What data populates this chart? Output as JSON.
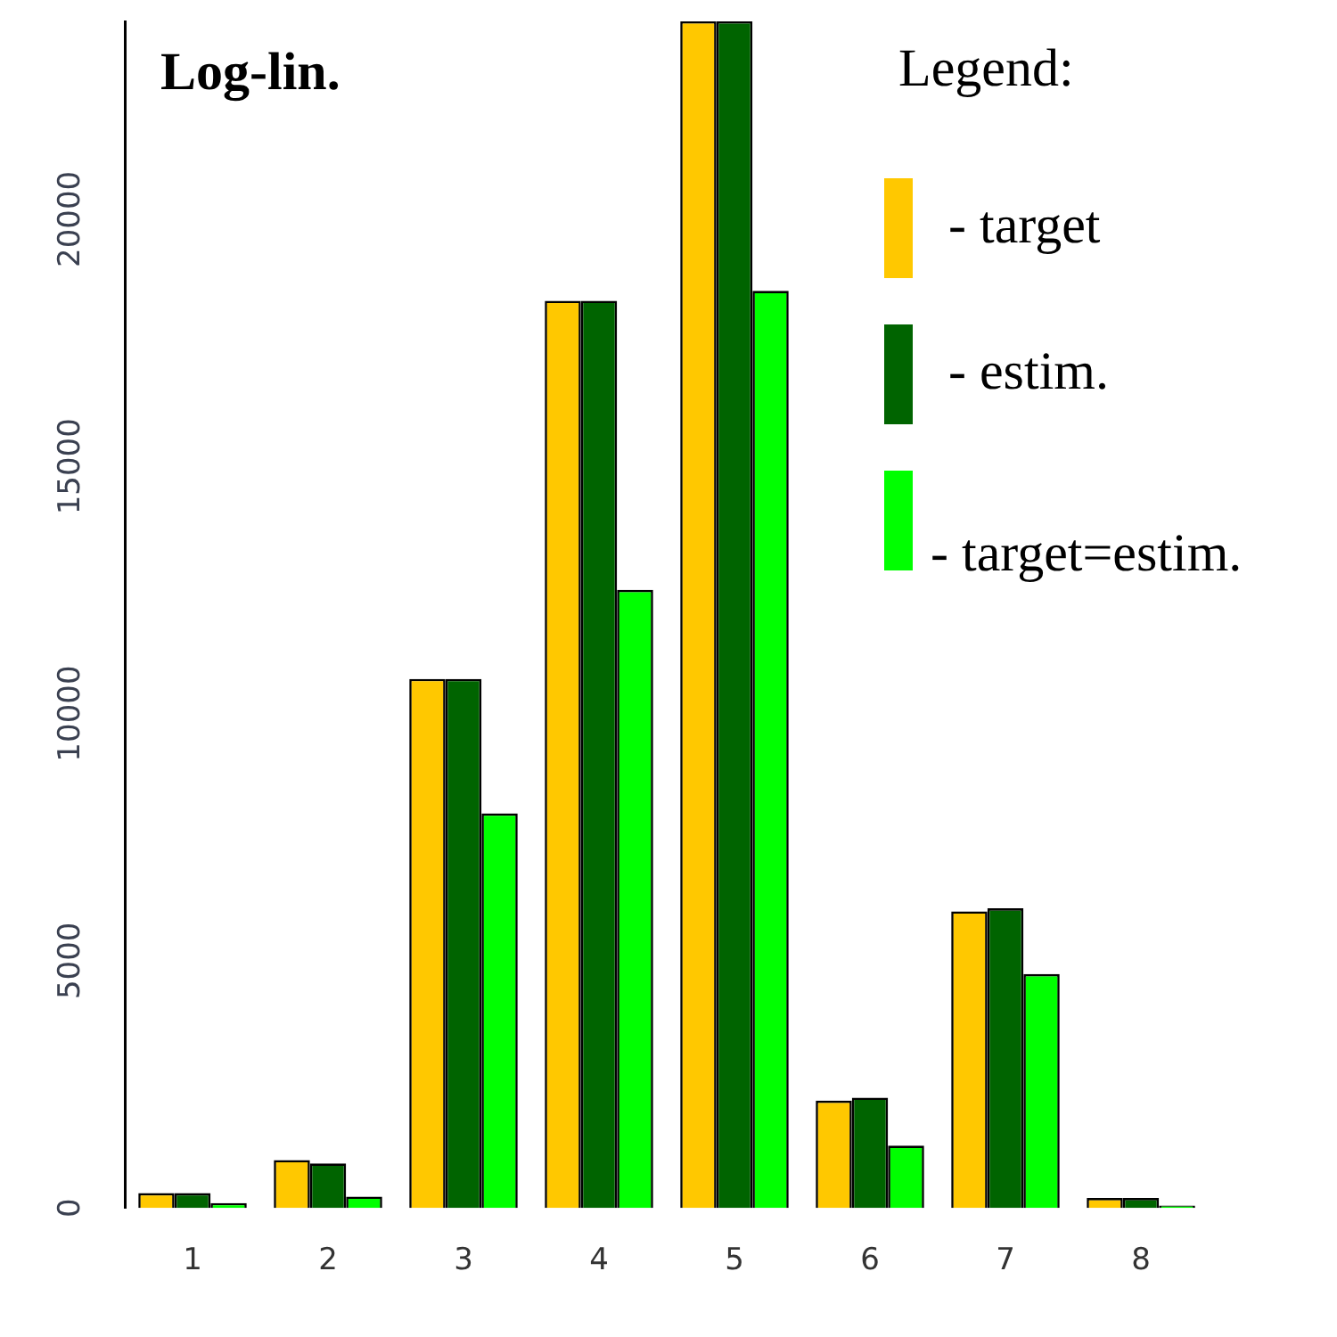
{
  "chart_data": {
    "type": "bar",
    "title": "Log-lin.",
    "legend_title": "Legend:",
    "categories": [
      "1",
      "2",
      "3",
      "4",
      "5",
      "6",
      "7",
      "8"
    ],
    "series": [
      {
        "name": "- target",
        "color": "#ffc800",
        "values": [
          300,
          970,
          10700,
          18350,
          24000,
          2170,
          6000,
          200
        ]
      },
      {
        "name": "- estim.",
        "color": "#006400",
        "values": [
          300,
          900,
          10700,
          18350,
          24000,
          2230,
          6060,
          200
        ]
      },
      {
        "name": "- target=estim.",
        "color": "#00ff00",
        "values": [
          100,
          230,
          7980,
          12500,
          18550,
          1260,
          4730,
          50
        ]
      }
    ],
    "ylim": [
      0,
      24000
    ],
    "yticks": [
      0,
      5000,
      10000,
      15000,
      20000
    ],
    "grid": false,
    "legend": "top right"
  }
}
